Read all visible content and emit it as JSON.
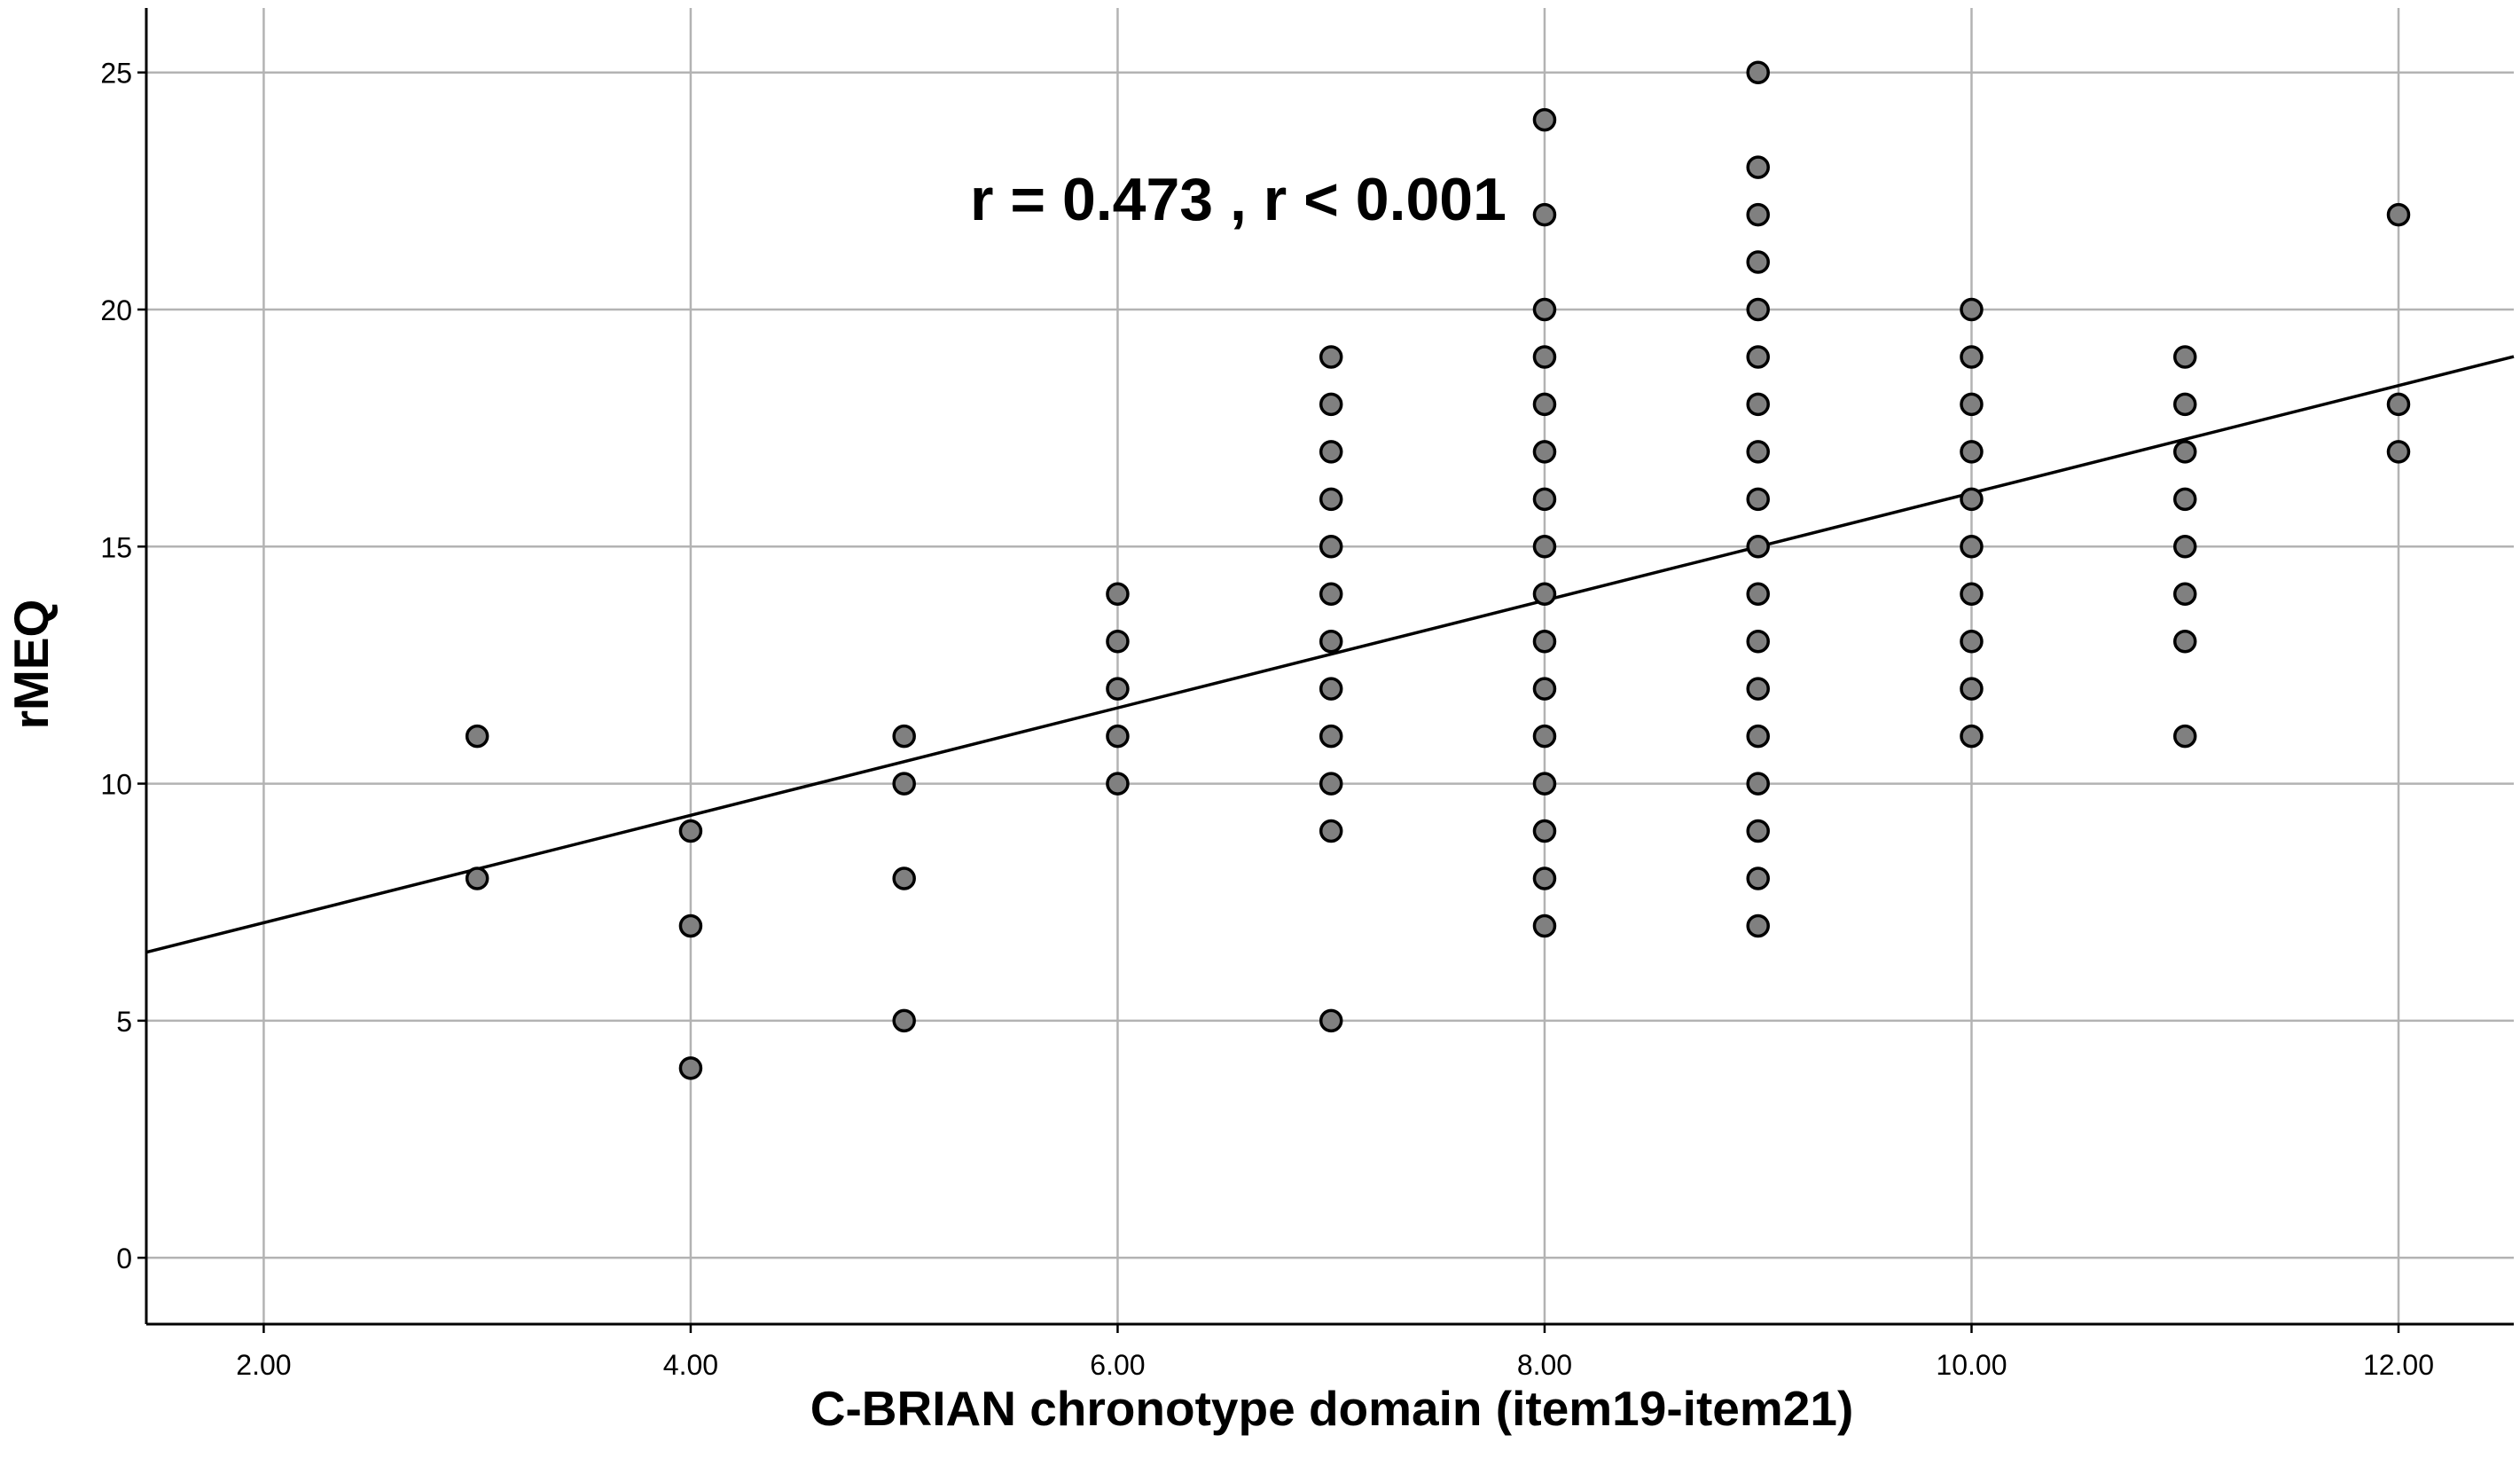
{
  "chart_data": {
    "type": "scatter",
    "xlabel": "C-BRIAN chronotype domain (item19-item21)",
    "ylabel": "rMEQ",
    "annotation": "r = 0.473 , r < 0.001",
    "xlim": [
      1.45,
      12.54
    ],
    "ylim": [
      -1.4,
      26.36
    ],
    "xticks": [
      2,
      4,
      6,
      8,
      10,
      12
    ],
    "xtick_labels": [
      "2.00",
      "4.00",
      "6.00",
      "8.00",
      "10.00",
      "12.00"
    ],
    "yticks": [
      0,
      5,
      10,
      15,
      20,
      25
    ],
    "ytick_labels": [
      "0",
      "5",
      "10",
      "15",
      "20",
      "25"
    ],
    "grid": true,
    "legend": "none",
    "fit_line": {
      "intercept": 4.8,
      "slope": 1.133
    },
    "colors": {
      "marker_fill": "#808080",
      "marker_edge": "#000000",
      "fit_line": "#000000",
      "grid": "#b3b3b3",
      "axis": "#000000"
    },
    "points": [
      [
        3,
        11
      ],
      [
        3,
        8
      ],
      [
        4,
        9
      ],
      [
        4,
        7
      ],
      [
        4,
        4
      ],
      [
        5,
        11
      ],
      [
        5,
        10
      ],
      [
        5,
        8
      ],
      [
        5,
        5
      ],
      [
        6,
        14
      ],
      [
        6,
        13
      ],
      [
        6,
        12
      ],
      [
        6,
        11
      ],
      [
        6,
        10
      ],
      [
        7,
        19
      ],
      [
        7,
        18
      ],
      [
        7,
        17
      ],
      [
        7,
        16
      ],
      [
        7,
        15
      ],
      [
        7,
        14
      ],
      [
        7,
        13
      ],
      [
        7,
        12
      ],
      [
        7,
        11
      ],
      [
        7,
        10
      ],
      [
        7,
        9
      ],
      [
        7,
        5
      ],
      [
        8,
        24
      ],
      [
        8,
        22
      ],
      [
        8,
        20
      ],
      [
        8,
        19
      ],
      [
        8,
        18
      ],
      [
        8,
        17
      ],
      [
        8,
        16
      ],
      [
        8,
        15
      ],
      [
        8,
        14
      ],
      [
        8,
        13
      ],
      [
        8,
        12
      ],
      [
        8,
        11
      ],
      [
        8,
        10
      ],
      [
        8,
        9
      ],
      [
        8,
        8
      ],
      [
        8,
        7
      ],
      [
        9,
        25
      ],
      [
        9,
        23
      ],
      [
        9,
        22
      ],
      [
        9,
        21
      ],
      [
        9,
        20
      ],
      [
        9,
        19
      ],
      [
        9,
        18
      ],
      [
        9,
        17
      ],
      [
        9,
        16
      ],
      [
        9,
        15
      ],
      [
        9,
        14
      ],
      [
        9,
        13
      ],
      [
        9,
        12
      ],
      [
        9,
        11
      ],
      [
        9,
        10
      ],
      [
        9,
        9
      ],
      [
        9,
        8
      ],
      [
        9,
        7
      ],
      [
        10,
        20
      ],
      [
        10,
        19
      ],
      [
        10,
        18
      ],
      [
        10,
        17
      ],
      [
        10,
        16
      ],
      [
        10,
        15
      ],
      [
        10,
        14
      ],
      [
        10,
        13
      ],
      [
        10,
        12
      ],
      [
        10,
        11
      ],
      [
        11,
        19
      ],
      [
        11,
        18
      ],
      [
        11,
        17
      ],
      [
        11,
        16
      ],
      [
        11,
        15
      ],
      [
        11,
        14
      ],
      [
        11,
        13
      ],
      [
        11,
        11
      ],
      [
        12,
        22
      ],
      [
        12,
        18
      ],
      [
        12,
        17
      ]
    ]
  }
}
